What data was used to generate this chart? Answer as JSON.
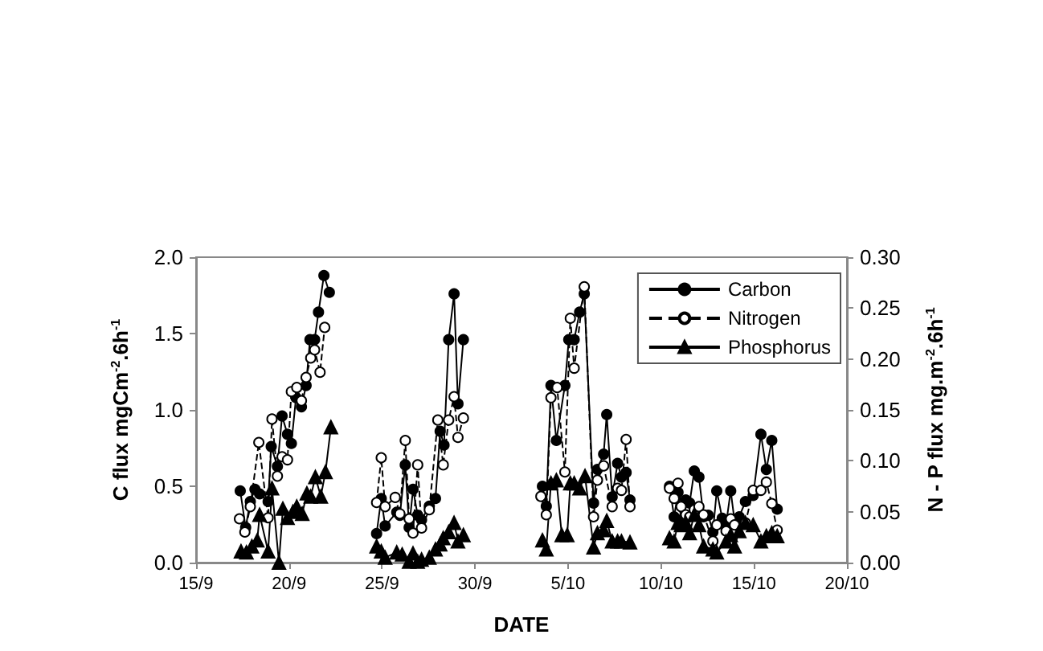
{
  "chart_data": {
    "type": "line",
    "xlabel": "DATE",
    "ylabel": "C flux mgCm$^{-2}$.6h$^{-1}$",
    "y2label": "N - P flux mg.m$^{-2}$.6h$^{-1}$",
    "xlim": [
      "--09-15",
      "--10-20"
    ],
    "xticks": [
      {
        "value": "--09-15",
        "label": "15/9"
      },
      {
        "value": "--09-20",
        "label": "20/9"
      },
      {
        "value": "--09-25",
        "label": "25/9"
      },
      {
        "value": "--09-30",
        "label": "30/9"
      },
      {
        "value": "--10-05",
        "label": "5/10"
      },
      {
        "value": "--10-10",
        "label": "10/10"
      },
      {
        "value": "--10-15",
        "label": "15/10"
      },
      {
        "value": "--10-20",
        "label": "20/10"
      }
    ],
    "ylim": [
      0,
      2
    ],
    "yticks": [
      {
        "value": 0,
        "label": "0.0"
      },
      {
        "value": 0.5,
        "label": "0.5"
      },
      {
        "value": 1,
        "label": "1.0"
      },
      {
        "value": 1.5,
        "label": "1.5"
      },
      {
        "value": 2,
        "label": "2.0"
      }
    ],
    "y2lim": [
      0,
      0.3
    ],
    "y2ticks": [
      {
        "value": 0,
        "label": "0.00"
      },
      {
        "value": 0.05,
        "label": "0.05"
      },
      {
        "value": 0.1,
        "label": "0.10"
      },
      {
        "value": 0.15,
        "label": "0.15"
      },
      {
        "value": 0.2,
        "label": "0.20"
      },
      {
        "value": 0.25,
        "label": "0.25"
      },
      {
        "value": 0.3,
        "label": "0.30"
      }
    ],
    "grid": false,
    "legend": "top right",
    "series": [
      {
        "name": "Carbon",
        "color": "#000000",
        "marker": "circle",
        "line_style": "solid",
        "x": [
          "--09-17T09:00",
          "--09-17T16:00",
          "--09-17T22:00",
          "--09-18T04:00",
          "--09-18T10:00",
          "--09-18T21:00",
          "--09-19T01:00",
          "--09-19T09:00",
          "--09-19T15:00",
          "--09-19T22:00",
          "--09-20T03:00",
          "--09-20T09:00",
          "--09-20T16:00",
          "--09-20T22:00",
          "--09-21T03:00",
          "--09-21T09:00",
          "--09-21T14:00",
          "--09-21T21:00",
          "--09-22T04:00",
          "--09-23T12:00",
          "--09-24T17:00",
          "--09-24T23:00",
          "--09-25T04:00",
          "--09-25T19:00",
          "--09-25T23:00",
          "--09-26T06:00",
          "--09-26T11:00",
          "--09-26T16:00",
          "--09-26T22:00",
          "--09-27T03:00",
          "--09-27T13:00",
          "--09-27T21:00",
          "--09-28T03:00",
          "--09-28T08:00",
          "--09-28T14:00",
          "--09-28T21:00",
          "--09-29T02:00",
          "--09-29T09:00",
          "--10-01T12:00",
          "--10-03T15:00",
          "--10-03T20:00",
          "--10-04T02:00",
          "--10-04T09:00",
          "--10-04T20:00",
          "--10-05T01:00",
          "--10-05T08:00",
          "--10-05T15:00",
          "--10-05T21:00",
          "--10-06T09:00",
          "--10-06T14:00",
          "--10-06T22:00",
          "--10-07T02:00",
          "--10-07T09:00",
          "--10-07T16:00",
          "--10-07T21:00",
          "--10-08T03:00",
          "--10-08T08:00",
          "--10-09T10:00",
          "--10-10T11:00",
          "--10-10T17:00",
          "--10-10T22:00",
          "--10-11T02:00",
          "--10-11T08:00",
          "--10-11T13:00",
          "--10-11T19:00",
          "--10-12T01:00",
          "--10-12T07:00",
          "--10-12T13:00",
          "--10-12T19:00",
          "--10-13T00:00",
          "--10-13T07:00",
          "--10-13T12:00",
          "--10-13T18:00",
          "--10-13T23:00",
          "--10-14T05:00",
          "--10-14T13:00",
          "--10-14T23:00",
          "--10-15T09:00",
          "--10-15T16:00",
          "--10-15T23:00",
          "--10-16T06:00"
        ],
        "values": [
          0.47,
          0.23,
          0.4,
          0.48,
          0.45,
          0.4,
          0.76,
          0.63,
          0.96,
          0.84,
          0.78,
          1.08,
          1.02,
          1.16,
          1.46,
          1.46,
          1.64,
          1.88,
          1.77,
          null,
          0.19,
          0.42,
          0.24,
          0.33,
          0.31,
          0.64,
          0.23,
          0.48,
          0.31,
          0.28,
          0.37,
          0.42,
          0.86,
          0.77,
          1.46,
          1.76,
          1.04,
          1.46,
          null,
          0.5,
          0.37,
          1.16,
          0.8,
          1.16,
          1.46,
          1.46,
          1.64,
          1.76,
          0.39,
          0.61,
          0.71,
          0.97,
          0.43,
          0.65,
          0.56,
          0.59,
          0.41,
          null,
          0.5,
          0.3,
          0.46,
          0.28,
          0.41,
          0.39,
          0.6,
          0.56,
          0.3,
          0.31,
          0.2,
          0.47,
          0.29,
          0.25,
          0.47,
          0.27,
          0.3,
          0.4,
          0.44,
          0.84,
          0.61,
          0.8,
          0.35
        ]
      },
      {
        "name": "Nitrogen",
        "color": "#000000",
        "marker": "circle",
        "line_style": "dashed",
        "axis": "y2",
        "x": [
          "--09-17T08:00",
          "--09-17T15:00",
          "--09-17T22:00",
          "--09-18T09:00",
          "--09-18T21:00",
          "--09-19T02:00",
          "--09-19T09:00",
          "--09-19T15:00",
          "--09-19T22:00",
          "--09-20T03:00",
          "--09-20T10:00",
          "--09-20T16:00",
          "--09-20T22:00",
          "--09-21T04:00",
          "--09-21T09:00",
          "--09-21T16:00",
          "--09-21T22:00",
          "--09-23T12:00",
          "--09-24T17:00",
          "--09-24T23:00",
          "--09-25T04:00",
          "--09-25T17:00",
          "--09-25T23:00",
          "--09-26T06:00",
          "--09-26T11:00",
          "--09-26T16:00",
          "--09-26T22:00",
          "--09-27T03:00",
          "--09-27T13:00",
          "--09-28T00:00",
          "--09-28T07:00",
          "--09-28T14:00",
          "--09-28T21:00",
          "--09-29T02:00",
          "--09-29T09:00",
          "--10-01T12:00",
          "--10-03T13:00",
          "--10-03T20:00",
          "--10-04T02:00",
          "--10-04T10:00",
          "--10-04T20:00",
          "--10-05T03:00",
          "--10-05T08:00",
          "--10-05T21:00",
          "--10-06T09:00",
          "--10-06T14:00",
          "--10-06T22:00",
          "--10-07T09:00",
          "--10-07T16:00",
          "--10-07T21:00",
          "--10-08T03:00",
          "--10-08T08:00",
          "--10-09T10:00",
          "--10-10T11:00",
          "--10-10T17:00",
          "--10-10T22:00",
          "--10-11T02:00",
          "--10-11T08:00",
          "--10-11T13:00",
          "--10-11T19:00",
          "--10-12T01:00",
          "--10-12T07:00",
          "--10-12T19:00",
          "--10-13T00:00",
          "--10-13T12:00",
          "--10-13T18:00",
          "--10-13T23:00",
          "--10-14T13:00",
          "--10-14T23:00",
          "--10-15T09:00",
          "--10-15T16:00",
          "--10-15T23:00",
          "--10-16T06:00"
        ],
        "values": [
          0.043,
          0.03,
          0.055,
          0.118,
          0.044,
          0.141,
          0.085,
          0.104,
          0.101,
          0.168,
          0.172,
          0.159,
          0.182,
          0.201,
          0.209,
          0.187,
          0.231,
          null,
          0.059,
          0.103,
          0.055,
          0.064,
          0.048,
          0.12,
          0.043,
          0.029,
          0.096,
          0.034,
          0.052,
          0.14,
          0.096,
          0.14,
          0.163,
          0.123,
          0.142,
          null,
          0.065,
          0.047,
          0.162,
          0.172,
          0.089,
          0.24,
          0.191,
          0.271,
          0.045,
          0.081,
          0.095,
          0.055,
          0.073,
          0.071,
          0.121,
          0.055,
          null,
          0.073,
          0.063,
          0.078,
          0.055,
          0.047,
          0.045,
          0.052,
          0.055,
          0.047,
          0.021,
          0.037,
          0.031,
          0.043,
          0.037,
          0.039,
          0.071,
          0.071,
          0.079,
          0.058,
          0.032
        ]
      },
      {
        "name": "Phosphorus",
        "color": "#000000",
        "marker": "triangle",
        "line_style": "solid",
        "axis": "y2",
        "x": [
          "--09-17T10:00",
          "--09-17T17:00",
          "--09-18T00:00",
          "--09-18T07:00",
          "--09-18T10:00",
          "--09-18T21:00",
          "--09-19T02:00",
          "--09-19T11:00",
          "--09-19T16:00",
          "--09-19T22:00",
          "--09-20T05:00",
          "--09-20T10:00",
          "--09-20T17:00",
          "--09-20T23:00",
          "--09-21T04:00",
          "--09-21T10:00",
          "--09-21T17:00",
          "--09-21T23:00",
          "--09-22T06:00",
          "--09-23T12:00",
          "--09-24T17:00",
          "--09-24T23:00",
          "--09-25T04:00",
          "--09-25T19:00",
          "--09-26T02:00",
          "--09-26T11:00",
          "--09-26T16:00",
          "--09-26T22:00",
          "--09-27T03:00",
          "--09-27T13:00",
          "--09-27T21:00",
          "--09-28T03:00",
          "--09-28T07:00",
          "--09-28T14:00",
          "--09-28T21:00",
          "--09-29T02:00",
          "--09-29T09:00",
          "--10-01T12:00",
          "--10-03T15:00",
          "--10-03T20:00",
          "--10-04T02:00",
          "--10-04T09:00",
          "--10-04T16:00",
          "--10-04T23:00",
          "--10-05T03:00",
          "--10-05T08:00",
          "--10-05T15:00",
          "--10-05T22:00",
          "--10-06T09:00",
          "--10-06T14:00",
          "--10-06T22:00",
          "--10-07T02:00",
          "--10-07T09:00",
          "--10-07T16:00",
          "--10-07T21:00",
          "--10-08T08:00",
          "--10-09T10:00",
          "--10-10T11:00",
          "--10-10T17:00",
          "--10-10T22:00",
          "--10-11T02:00",
          "--10-11T08:00",
          "--10-11T13:00",
          "--10-11T19:00",
          "--10-12T01:00",
          "--10-12T07:00",
          "--10-12T19:00",
          "--10-13T00:00",
          "--10-13T12:00",
          "--10-13T18:00",
          "--10-13T23:00",
          "--10-14T05:00",
          "--10-14T13:00",
          "--10-14T23:00",
          "--10-15T09:00",
          "--10-15T16:00",
          "--10-15T23:00",
          "--10-16T06:00"
        ],
        "values": [
          0.011,
          0.01,
          0.016,
          0.022,
          0.047,
          0.011,
          0.073,
          0.0,
          0.053,
          0.044,
          0.05,
          0.055,
          0.048,
          0.068,
          0.065,
          0.084,
          0.065,
          0.089,
          0.133,
          null,
          0.016,
          0.011,
          0.005,
          0.01,
          0.008,
          0.001,
          0.009,
          0.001,
          0.003,
          0.005,
          0.013,
          0.018,
          0.024,
          0.03,
          0.039,
          0.021,
          0.027,
          null,
          0.022,
          0.013,
          0.078,
          0.081,
          0.027,
          0.027,
          0.078,
          0.078,
          0.073,
          0.085,
          0.015,
          0.029,
          0.032,
          0.041,
          0.021,
          0.021,
          0.021,
          0.02,
          null,
          0.024,
          0.021,
          0.039,
          0.037,
          0.039,
          0.029,
          0.047,
          0.037,
          0.016,
          0.013,
          0.01,
          0.021,
          0.027,
          0.016,
          0.031,
          0.039,
          0.037,
          0.021,
          0.026,
          0.029,
          0.026
        ]
      }
    ]
  }
}
